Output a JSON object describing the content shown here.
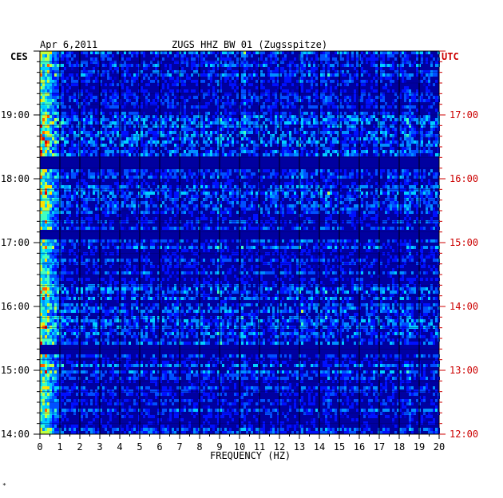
{
  "header": {
    "date": "Apr 6,2011",
    "station": "ZUGS HHZ BW 01 (Zugsspitze)"
  },
  "timezones": {
    "left": "CES",
    "right": "UTC"
  },
  "colors": {
    "background": "#0000a0",
    "utc_text": "#cc0000",
    "grid": "#000000"
  },
  "chart_data": {
    "type": "heatmap",
    "title": "",
    "xlabel": "FREQUENCY (HZ)",
    "ylabel": "",
    "xlim": [
      0,
      20
    ],
    "x_ticks": [
      "0",
      "1",
      "2",
      "3",
      "4",
      "5",
      "6",
      "7",
      "8",
      "9",
      "10",
      "11",
      "12",
      "13",
      "14",
      "15",
      "16",
      "17",
      "18",
      "19",
      "20"
    ],
    "y_left_ticks": [
      "19:00",
      "18:00",
      "17:00",
      "16:00",
      "15:00",
      "14:00"
    ],
    "y_right_ticks": [
      "17:00",
      "16:00",
      "15:00",
      "14:00",
      "13:00",
      "12:00"
    ],
    "grid": true
  },
  "footer": {
    "mark": "*"
  }
}
